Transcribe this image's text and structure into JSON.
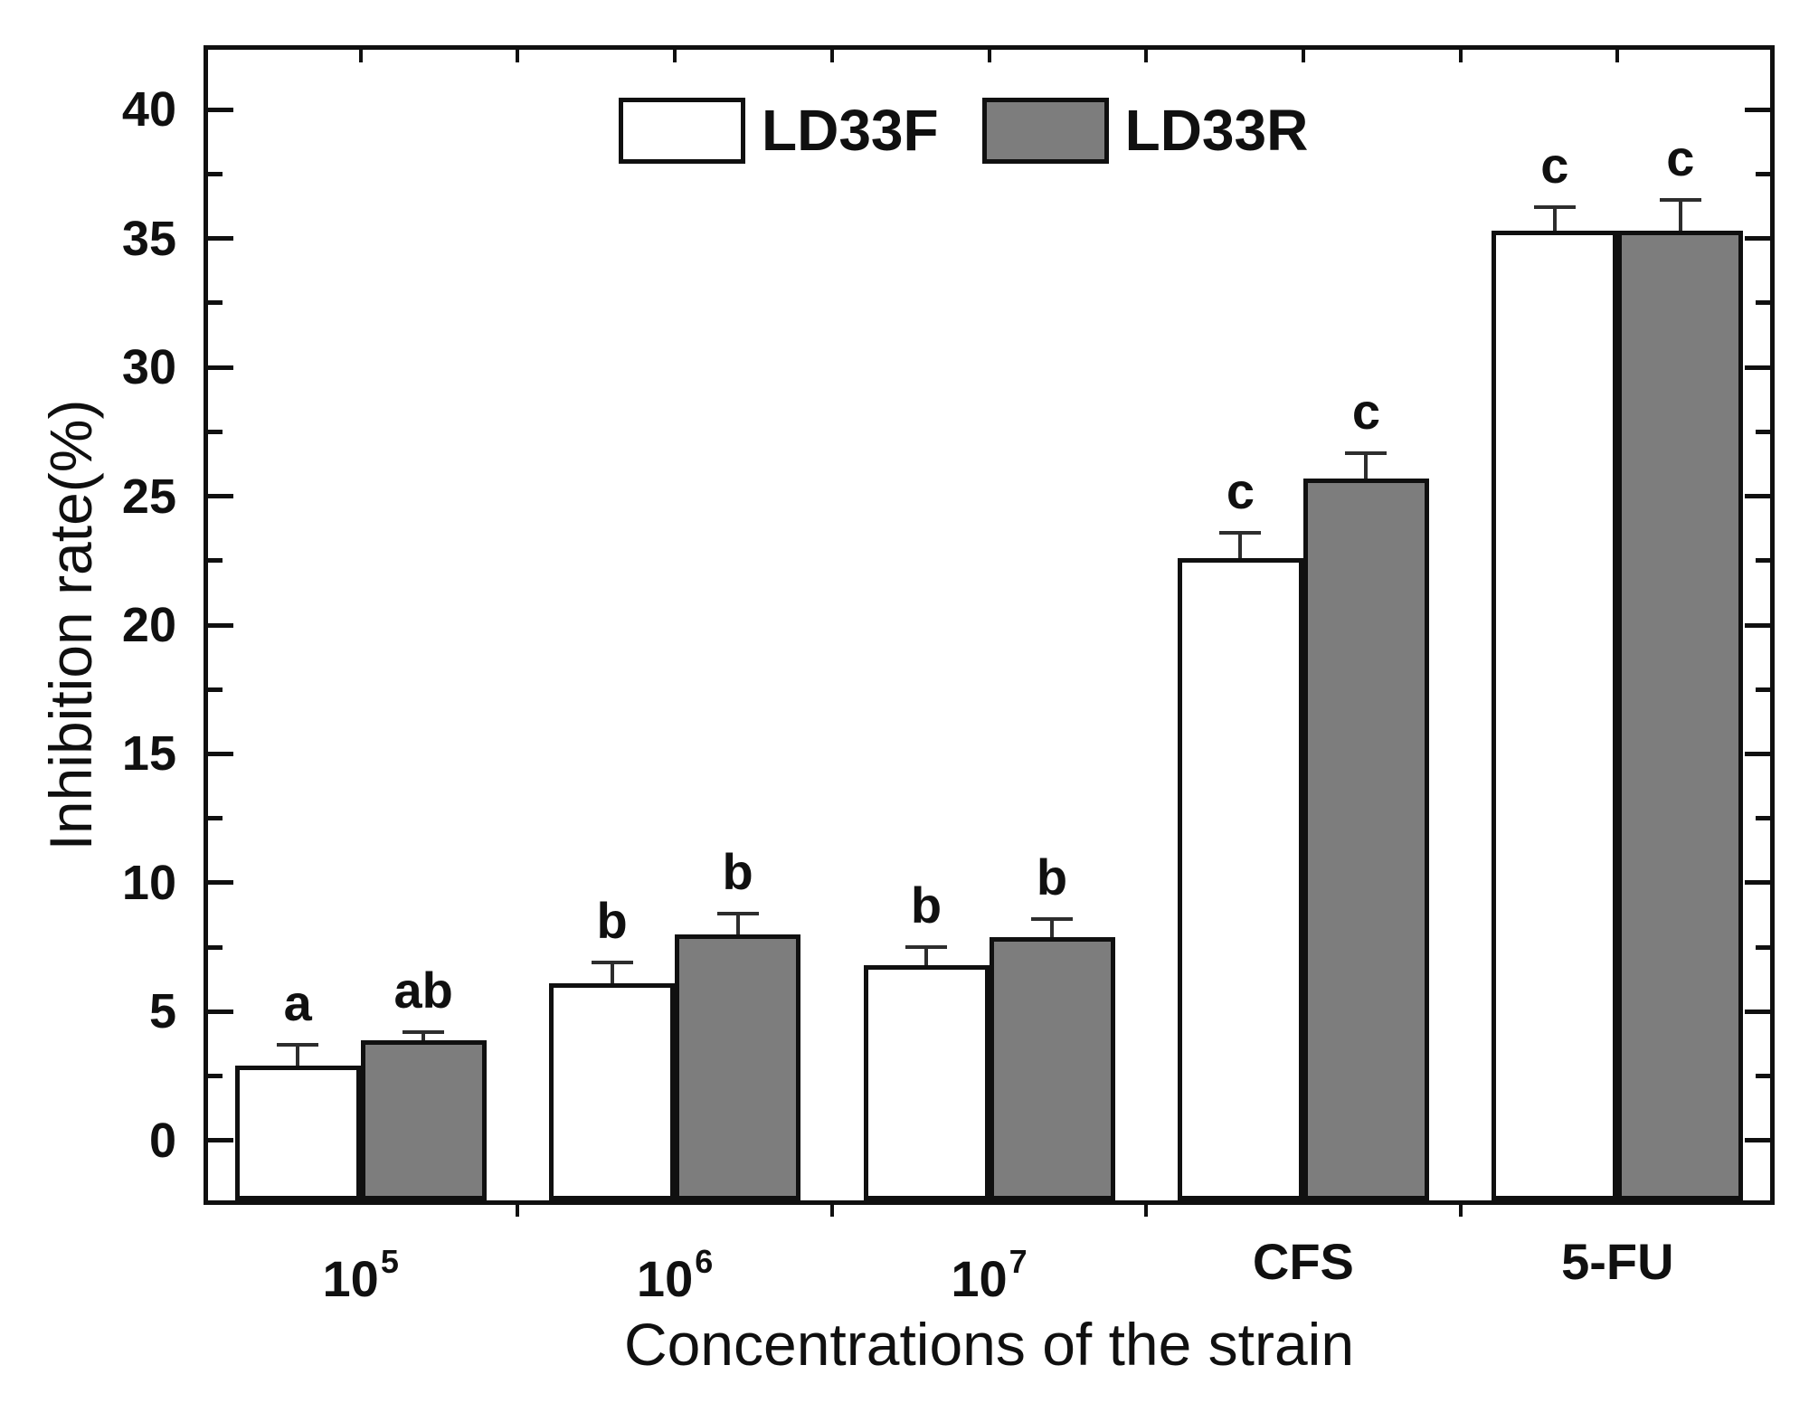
{
  "figure": {
    "background": "#ffffff"
  },
  "chart_data": {
    "type": "bar",
    "title": "",
    "xlabel": "Concentrations of the strain",
    "ylabel": "Inhibition rate(%)",
    "categories": [
      "10^5",
      "10^6",
      "10^7",
      "CFS",
      "5-FU"
    ],
    "categories_display": [
      {
        "base": "10",
        "sup": "5"
      },
      {
        "base": "10",
        "sup": "6"
      },
      {
        "base": "10",
        "sup": "7"
      },
      {
        "base": "CFS",
        "sup": ""
      },
      {
        "base": "5-FU",
        "sup": ""
      }
    ],
    "series": [
      {
        "name": "LD33F",
        "color": "#ffffff",
        "values": [
          2.9,
          6.1,
          6.8,
          22.6,
          35.3
        ],
        "errors": [
          0.8,
          0.8,
          0.7,
          1.0,
          0.9
        ],
        "sig_letters": [
          "a",
          "b",
          "b",
          "c",
          "c"
        ]
      },
      {
        "name": "LD33R",
        "color": "#7d7d7d",
        "values": [
          3.9,
          8.0,
          7.9,
          25.7,
          35.3
        ],
        "errors": [
          0.3,
          0.8,
          0.7,
          1.0,
          1.2
        ],
        "sig_letters": [
          "ab",
          "b",
          "b",
          "c",
          "c"
        ]
      }
    ],
    "ylim": [
      -2.5,
      42.5
    ],
    "yticks_major": [
      0,
      5,
      10,
      15,
      20,
      25,
      30,
      35,
      40
    ],
    "yticks_minor_step": 2.5,
    "grid": false,
    "legend_position": "top-center"
  },
  "legend": {
    "items": [
      {
        "label": "LD33F",
        "fill": "#ffffff"
      },
      {
        "label": "LD33R",
        "fill": "#7d7d7d"
      }
    ]
  },
  "colors": {
    "axis": "#101010",
    "text": "#101010",
    "bar_border": "#101010",
    "error_bar": "#2d2d2d"
  }
}
